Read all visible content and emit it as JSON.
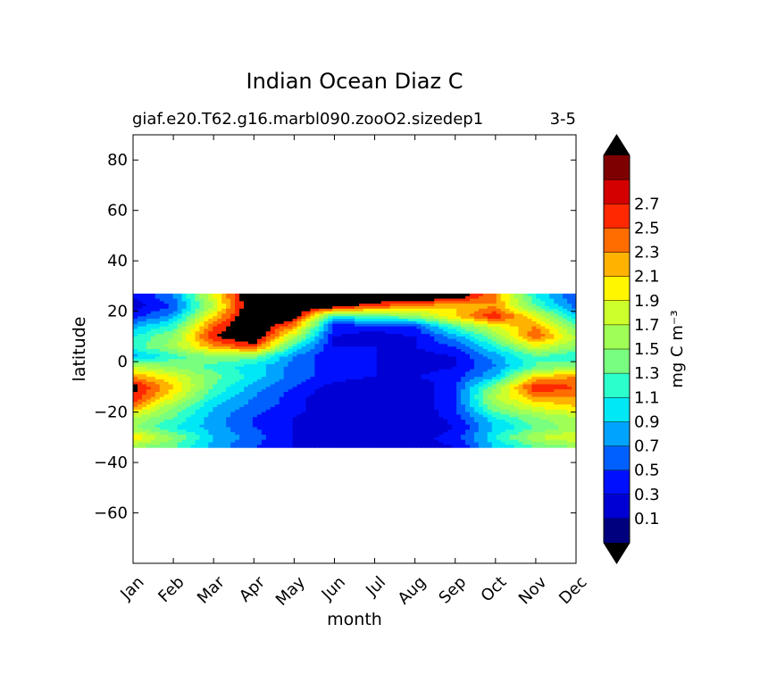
{
  "chart_data": {
    "type": "heatmap",
    "subtype": "filled-contour",
    "title": "Indian Ocean Diaz C",
    "subtitle_left": "giaf.e20.T62.g16.marbl090.zooO2.sizedep1",
    "subtitle_right": "3-5",
    "xlabel": "month",
    "ylabel": "latitude",
    "x_ticks": [
      "Jan",
      "Feb",
      "Mar",
      "Apr",
      "May",
      "Jun",
      "Jul",
      "Aug",
      "Sep",
      "Oct",
      "Nov",
      "Dec"
    ],
    "y_ticks": [
      80,
      60,
      40,
      20,
      0,
      -20,
      -40,
      -60
    ],
    "y_tick_labels": [
      "80",
      "60",
      "40",
      "20",
      "0",
      "−20",
      "−40",
      "−60"
    ],
    "ylim": [
      -80,
      90
    ],
    "data_lat_range": [
      -34,
      27
    ],
    "colorbar": {
      "label": "mg C m⁻³",
      "levels": [
        0.0,
        0.2,
        0.4,
        0.6,
        0.8,
        1.0,
        1.2,
        1.4,
        1.6,
        1.8,
        2.0,
        2.2,
        2.4,
        2.6,
        2.8
      ],
      "tick_labels": [
        "0.1",
        "0.3",
        "0.5",
        "0.7",
        "0.9",
        "1.1",
        "1.3",
        "1.5",
        "1.7",
        "1.9",
        "2.1",
        "2.3",
        "2.5",
        "2.7"
      ],
      "colors": [
        "#00007f",
        "#0000d4",
        "#0010ff",
        "#0060ff",
        "#00a4ff",
        "#00e8f6",
        "#2bffcc",
        "#78ff7f",
        "#a0ff56",
        "#ccff2b",
        "#fff600",
        "#ffb200",
        "#ff6c00",
        "#ff2800",
        "#d40000",
        "#7f0000"
      ],
      "over_color": "#000000",
      "under_color": "#000000",
      "extend": "both"
    },
    "lat_rows": [
      26,
      22,
      18,
      14,
      10,
      6,
      2,
      -2,
      -6,
      -10,
      -14,
      -18,
      -22,
      -26,
      -30,
      -34
    ],
    "grid": [
      [
        0.4,
        0.8,
        2.0,
        3.2,
        3.2,
        3.2,
        3.2,
        3.2,
        3.0,
        2.4,
        1.2,
        0.6
      ],
      [
        0.3,
        0.6,
        1.8,
        3.2,
        3.2,
        3.0,
        2.6,
        2.4,
        2.2,
        2.4,
        1.4,
        0.7
      ],
      [
        0.5,
        0.9,
        2.2,
        3.2,
        3.0,
        1.2,
        1.4,
        1.6,
        2.2,
        2.8,
        2.0,
        1.0
      ],
      [
        0.9,
        1.3,
        2.6,
        3.2,
        2.4,
        0.5,
        0.5,
        0.6,
        1.4,
        2.0,
        2.4,
        1.4
      ],
      [
        1.2,
        1.6,
        2.8,
        3.1,
        1.8,
        0.4,
        0.3,
        0.4,
        0.9,
        1.6,
        2.6,
        1.8
      ],
      [
        1.3,
        1.7,
        2.4,
        2.7,
        1.2,
        0.4,
        0.4,
        0.4,
        0.6,
        1.2,
        2.0,
        1.6
      ],
      [
        0.9,
        1.3,
        1.6,
        1.5,
        0.8,
        0.4,
        0.4,
        0.3,
        0.4,
        0.9,
        1.4,
        1.2
      ],
      [
        1.8,
        1.6,
        1.3,
        1.1,
        0.7,
        0.5,
        0.4,
        0.3,
        0.4,
        0.8,
        1.4,
        1.6
      ],
      [
        2.4,
        2.0,
        1.5,
        1.1,
        0.7,
        0.5,
        0.4,
        0.4,
        0.5,
        1.0,
        2.2,
        2.4
      ],
      [
        2.9,
        2.2,
        1.4,
        0.9,
        0.6,
        0.3,
        0.2,
        0.2,
        0.6,
        1.6,
        2.8,
        2.6
      ],
      [
        2.8,
        2.0,
        1.2,
        0.8,
        0.5,
        0.2,
        0.2,
        0.2,
        0.6,
        1.8,
        2.4,
        2.4
      ],
      [
        2.4,
        1.6,
        1.0,
        0.7,
        0.5,
        0.2,
        0.2,
        0.2,
        0.6,
        1.6,
        2.0,
        2.2
      ],
      [
        1.8,
        1.4,
        0.9,
        0.6,
        0.4,
        0.2,
        0.2,
        0.2,
        0.5,
        1.2,
        1.6,
        1.8
      ],
      [
        1.6,
        1.2,
        0.9,
        0.6,
        0.4,
        0.3,
        0.2,
        0.2,
        0.4,
        1.0,
        1.4,
        1.7
      ],
      [
        2.2,
        1.6,
        1.0,
        0.7,
        0.4,
        0.3,
        0.3,
        0.3,
        0.5,
        1.2,
        1.8,
        2.0
      ],
      [
        1.6,
        1.4,
        0.9,
        0.6,
        0.4,
        0.3,
        0.3,
        0.3,
        0.4,
        1.0,
        1.4,
        1.6
      ]
    ]
  }
}
